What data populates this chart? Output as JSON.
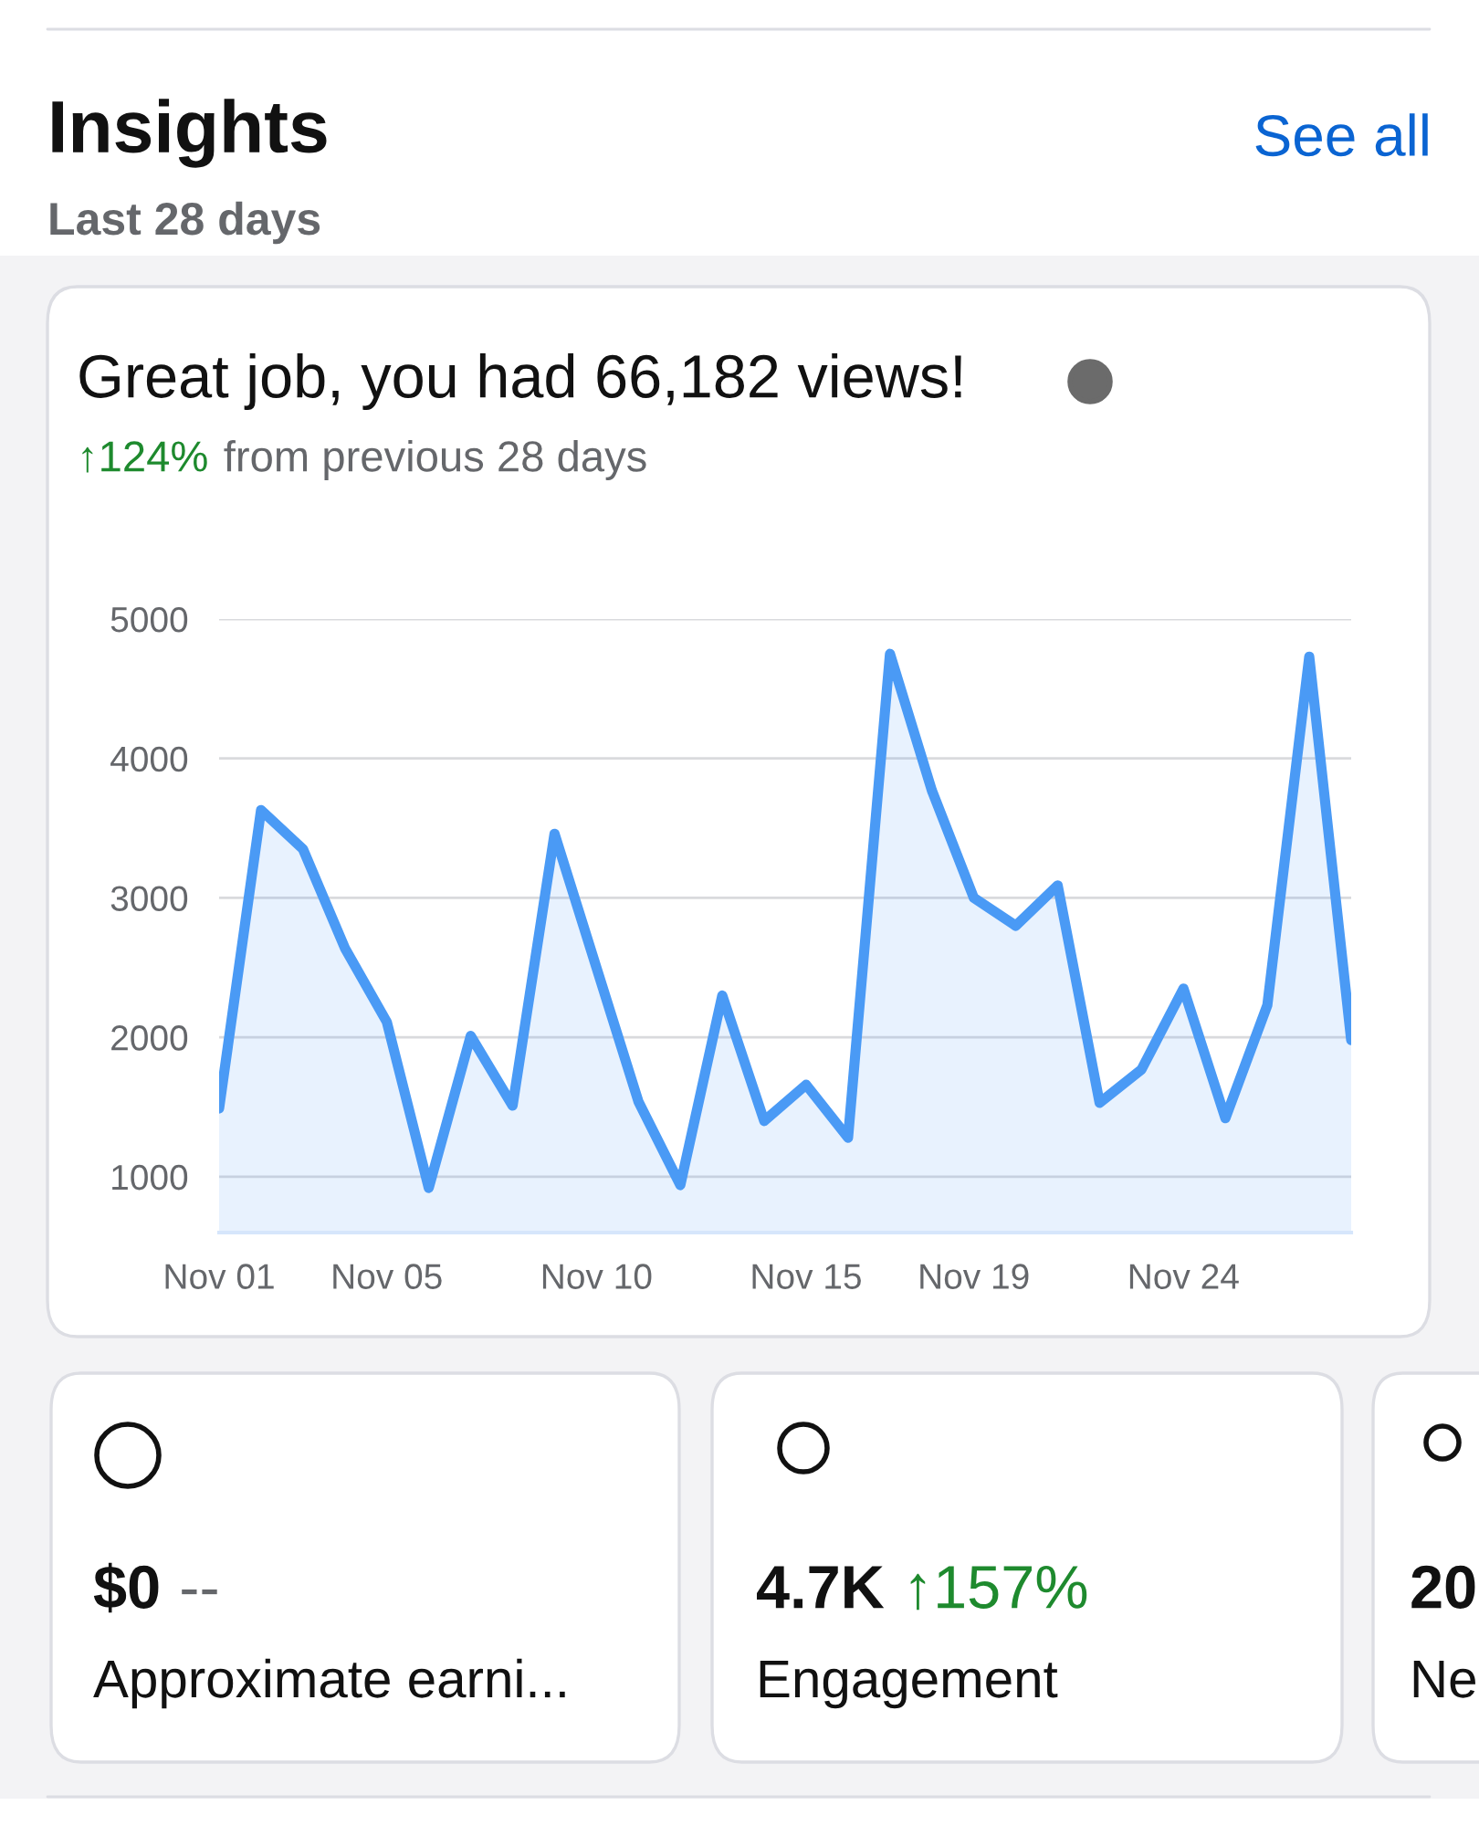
{
  "chart_data": {
    "type": "area",
    "title": "Great job, you had 66,182 views!",
    "subtitle": "↑124% from previous 28 days",
    "categories": [
      "Nov 01",
      null,
      null,
      null,
      "Nov 05",
      null,
      null,
      null,
      null,
      "Nov 10",
      null,
      null,
      null,
      null,
      "Nov 15",
      null,
      null,
      null,
      "Nov 19",
      null,
      null,
      null,
      null,
      "Nov 24",
      null,
      null,
      null,
      null
    ],
    "series": [
      {
        "color": "#4a9af5",
        "values": [
          1490,
          3630,
          3350,
          2640,
          2110,
          920,
          2010,
          1510,
          3460,
          2500,
          1540,
          940,
          2300,
          1400,
          1660,
          1280,
          4750,
          3770,
          3000,
          2800,
          3090,
          1530,
          1770,
          2350,
          1420,
          2230,
          4730,
          1980
        ]
      }
    ],
    "ylim": [
      600,
      5000
    ],
    "yticks": [
      1000,
      2000,
      3000,
      4000,
      5000
    ],
    "grid": "y",
    "annotations": [
      "Insights",
      "Last 28 days",
      "See all",
      "$0 --",
      "Approximate earni...",
      "4.7K ↑157%",
      "Engagement",
      "20",
      "Ne"
    ]
  }
}
